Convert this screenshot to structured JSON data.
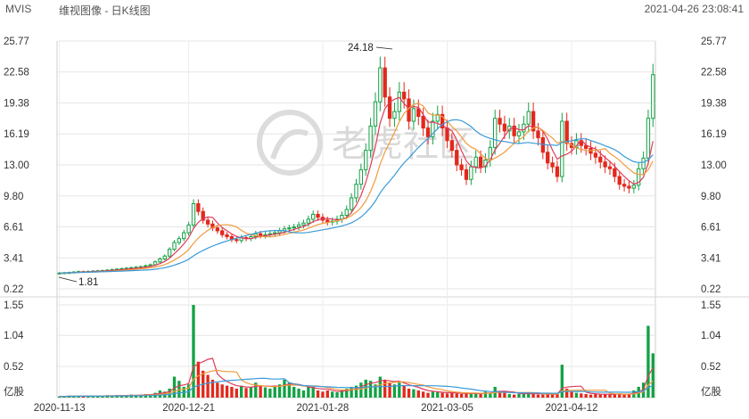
{
  "header": {
    "symbol": "MVIS",
    "name": "维视图像 - 日K线图",
    "datetime": "2021-04-26 23:08:41"
  },
  "watermark": {
    "text": "老虎社区"
  },
  "colors": {
    "up": "#12a244",
    "down": "#e2281c",
    "ma1": "#e03a5a",
    "ma2": "#f29a3d",
    "ma3": "#3a9ad9",
    "grid": "#e6e6e6"
  },
  "chart_data": {
    "type": "candlestick",
    "price_axis": {
      "ticks": [
        "25.77",
        "22.58",
        "19.38",
        "16.19",
        "13.00",
        "9.80",
        "6.61",
        "3.41",
        "0.22"
      ],
      "min": 0.22,
      "max": 25.77
    },
    "volume_axis": {
      "ticks": [
        "1.55",
        "1.04",
        "0.52"
      ],
      "unit": "亿股",
      "min": 0,
      "max": 1.55
    },
    "date_ticks": [
      "2020-11-13",
      "2020-12-21",
      "2021-01-28",
      "2021-03-05",
      "2021-04-12"
    ],
    "annotations": {
      "high": "24.18",
      "low": "1.81"
    },
    "closes": [
      1.85,
      1.88,
      1.9,
      1.95,
      2,
      1.98,
      2.02,
      2.05,
      2.08,
      2.1,
      2.15,
      2.2,
      2.25,
      2.3,
      2.35,
      2.4,
      2.45,
      2.5,
      2.6,
      2.7,
      3,
      3.3,
      3.6,
      4.3,
      5,
      5.4,
      6,
      6.8,
      9,
      8.2,
      7.3,
      6.9,
      6.5,
      6.2,
      5.8,
      5.6,
      5.3,
      5.2,
      5.5,
      5.4,
      5.6,
      5.9,
      5.7,
      5.8,
      5.9,
      6,
      6.2,
      6.4,
      6.5,
      6.6,
      6.8,
      7,
      7.4,
      7.9,
      7.6,
      7.3,
      7.1,
      7.2,
      7.4,
      7.8,
      8.4,
      9.6,
      11,
      12.5,
      14.5,
      17,
      19.5,
      23,
      20,
      17.8,
      18.5,
      20.5,
      19.8,
      17.5,
      18.8,
      18,
      16.8,
      15.9,
      17.5,
      18.2,
      16.8,
      15.5,
      14.5,
      13,
      12.5,
      11.5,
      12.8,
      13.8,
      12.8,
      13.5,
      14.8,
      17.8,
      17.2,
      16.5,
      17,
      16,
      16.4,
      17.2,
      18.5,
      16.5,
      15.8,
      14.3,
      13.2,
      12.8,
      11.8,
      17.5,
      15.2,
      14.8,
      15.5,
      15,
      14.7,
      14.2,
      13.8,
      13.3,
      12.8,
      12.6,
      11.8,
      11,
      10.8,
      10.6,
      10.9,
      12.6,
      13.7,
      17.8,
      22.3
    ],
    "volumes": [
      0.02,
      0.02,
      0.03,
      0.02,
      0.03,
      0.02,
      0.03,
      0.03,
      0.02,
      0.03,
      0.04,
      0.03,
      0.04,
      0.03,
      0.04,
      0.05,
      0.04,
      0.05,
      0.06,
      0.05,
      0.08,
      0.12,
      0.1,
      0.15,
      0.35,
      0.28,
      0.18,
      0.22,
      1.55,
      0.6,
      0.45,
      0.38,
      0.3,
      0.25,
      0.22,
      0.2,
      0.18,
      0.15,
      0.2,
      0.16,
      0.18,
      0.25,
      0.2,
      0.17,
      0.15,
      0.2,
      0.22,
      0.3,
      0.25,
      0.18,
      0.15,
      0.12,
      0.2,
      0.18,
      0.12,
      0.1,
      0.12,
      0.1,
      0.09,
      0.12,
      0.15,
      0.18,
      0.2,
      0.25,
      0.3,
      0.28,
      0.22,
      0.35,
      0.3,
      0.25,
      0.22,
      0.25,
      0.2,
      0.15,
      0.14,
      0.12,
      0.1,
      0.08,
      0.1,
      0.09,
      0.08,
      0.07,
      0.08,
      0.07,
      0.06,
      0.07,
      0.06,
      0.08,
      0.06,
      0.1,
      0.08,
      0.18,
      0.1,
      0.08,
      0.06,
      0.05,
      0.06,
      0.07,
      0.08,
      0.06,
      0.05,
      0.05,
      0.06,
      0.05,
      0.07,
      0.55,
      0.15,
      0.1,
      0.08,
      0.07,
      0.06,
      0.05,
      0.06,
      0.05,
      0.06,
      0.05,
      0.06,
      0.07,
      0.05,
      0.06,
      0.12,
      0.18,
      0.25,
      1.2,
      0.74
    ]
  }
}
